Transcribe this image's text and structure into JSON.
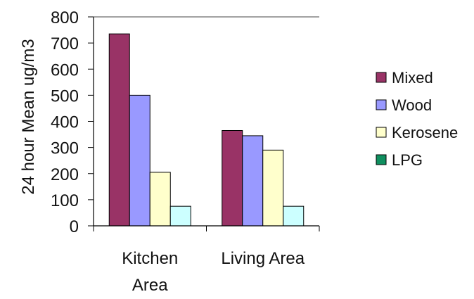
{
  "chart_data": {
    "type": "bar",
    "title": "",
    "xlabel": "",
    "ylabel": "24 hour Mean ug/m3",
    "ylim": [
      0,
      800
    ],
    "yticks": [
      0,
      100,
      200,
      300,
      400,
      500,
      600,
      700,
      800
    ],
    "categories": [
      [
        "Kitchen",
        "Area"
      ],
      [
        "Living Area"
      ]
    ],
    "series": [
      {
        "name": "Mixed",
        "color": "#993366",
        "values": [
          735,
          365
        ]
      },
      {
        "name": "Wood",
        "color": "#9999ff",
        "values": [
          500,
          345
        ]
      },
      {
        "name": "Kerosene",
        "color": "#ffffcc",
        "values": [
          205,
          290
        ]
      },
      {
        "name": "LPG",
        "color": "#ccffff",
        "values": [
          75,
          75
        ]
      }
    ],
    "legend": {
      "position": "right",
      "swatch_colors": [
        "#993366",
        "#9999ff",
        "#ffffcc",
        "#0f8f5f"
      ]
    },
    "grid": false
  }
}
